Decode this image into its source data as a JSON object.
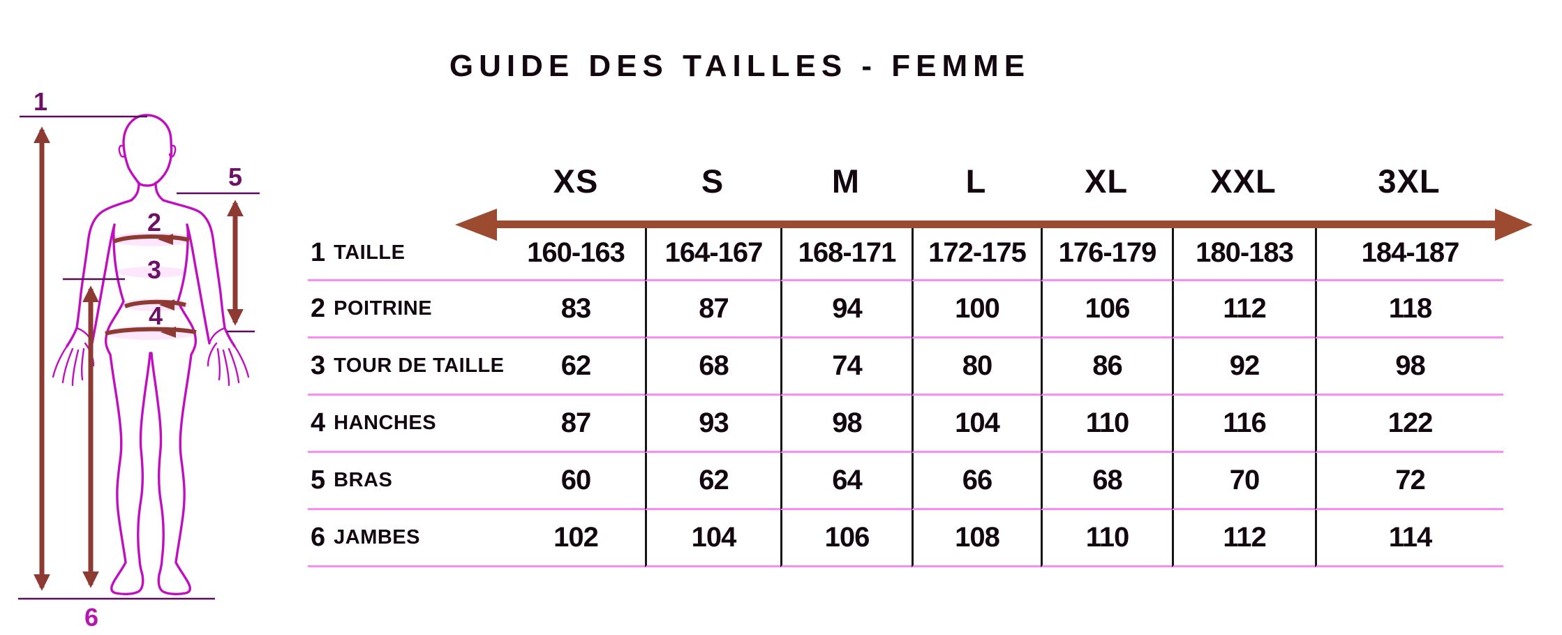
{
  "title": "GUIDE DES TAILLES - FEMME",
  "figure": {
    "markers": [
      "1",
      "2",
      "3",
      "4",
      "5",
      "6"
    ]
  },
  "table": {
    "sizes": [
      "XS",
      "S",
      "M",
      "L",
      "XL",
      "XXL",
      "3XL"
    ],
    "rows": [
      {
        "num": "1",
        "label": "TAILLE",
        "values": [
          "160-163",
          "164-167",
          "168-171",
          "172-175",
          "176-179",
          "180-183",
          "184-187"
        ]
      },
      {
        "num": "2",
        "label": "POITRINE",
        "values": [
          "83",
          "87",
          "94",
          "100",
          "106",
          "112",
          "118"
        ]
      },
      {
        "num": "3",
        "label": "TOUR DE TAILLE",
        "values": [
          "62",
          "68",
          "74",
          "80",
          "86",
          "92",
          "98"
        ]
      },
      {
        "num": "4",
        "label": "HANCHES",
        "values": [
          "87",
          "93",
          "98",
          "104",
          "110",
          "116",
          "122"
        ]
      },
      {
        "num": "5",
        "label": "BRAS",
        "values": [
          "60",
          "62",
          "64",
          "66",
          "68",
          "70",
          "72"
        ]
      },
      {
        "num": "6",
        "label": "JAMBES",
        "values": [
          "102",
          "104",
          "106",
          "108",
          "110",
          "112",
          "114"
        ]
      }
    ]
  },
  "chart_data": {
    "type": "table",
    "title": "GUIDE DES TAILLES - FEMME",
    "columns": [
      "XS",
      "S",
      "M",
      "L",
      "XL",
      "XXL",
      "3XL"
    ],
    "rows": [
      {
        "name": "1 TAILLE",
        "values": [
          "160-163",
          "164-167",
          "168-171",
          "172-175",
          "176-179",
          "180-183",
          "184-187"
        ]
      },
      {
        "name": "2 POITRINE",
        "values": [
          83,
          87,
          94,
          100,
          106,
          112,
          118
        ]
      },
      {
        "name": "3 TOUR DE TAILLE",
        "values": [
          62,
          68,
          74,
          80,
          86,
          92,
          98
        ]
      },
      {
        "name": "4 HANCHES",
        "values": [
          87,
          93,
          98,
          104,
          110,
          116,
          122
        ]
      },
      {
        "name": "5 BRAS",
        "values": [
          60,
          62,
          64,
          66,
          68,
          70,
          72
        ]
      },
      {
        "name": "6 JAMBES",
        "values": [
          102,
          104,
          106,
          108,
          110,
          112,
          114
        ]
      }
    ],
    "legend_note": "body measurement diagram with markers 1-6 (height, chest, waist, hips, arm, leg)"
  },
  "colors": {
    "range-arrow": "#9c4a30",
    "measure": "#8d3a32",
    "outline": "#c00ec0",
    "refline": "#5a0c5a",
    "marker": "#6d1166",
    "marker6": "#b517ae",
    "pink": "#fa8cf5"
  }
}
